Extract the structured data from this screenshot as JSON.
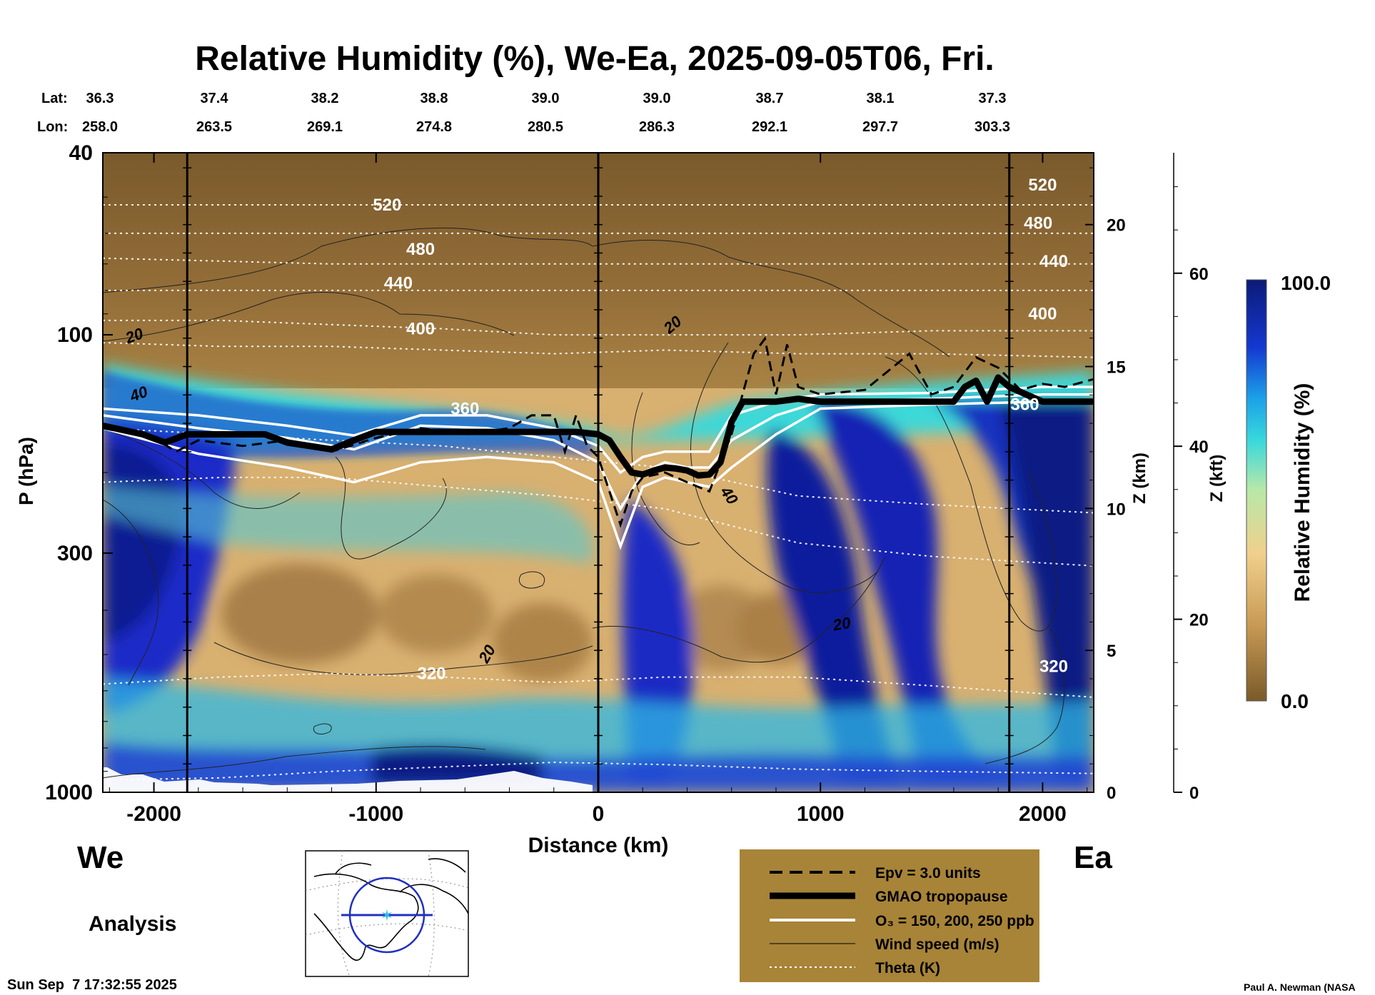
{
  "chart_data": {
    "type": "heatmap",
    "title": "Relative Humidity (%), We-Ea, 2025-09-05T06, Fri.",
    "xlabel": "Distance (km)",
    "ylabel": "P (hPa)",
    "z_km_label": "Z (km)",
    "z_kft_label": "Z (kft)",
    "colorbar_label": "Relative Humidity (%)",
    "colorbar_range": [
      "0.0",
      "100.0"
    ],
    "xlim": [
      -2230,
      2230
    ],
    "ylim_hpa": [
      1000,
      40
    ],
    "x_ticks": [
      -2000,
      -1000,
      0,
      1000,
      2000
    ],
    "x_tick_labels": [
      "-2000",
      "-1000",
      "0",
      "1000",
      "2000"
    ],
    "p_ticks": [
      40,
      100,
      300,
      1000
    ],
    "p_tick_labels": [
      "40",
      "100",
      "300",
      "1000"
    ],
    "z_km_ticks": [
      0,
      5,
      10,
      15,
      20
    ],
    "z_km_tick_labels": [
      "0",
      "5",
      "10",
      "15",
      "20"
    ],
    "z_kft_ticks": [
      0,
      20,
      40,
      60
    ],
    "z_kft_tick_labels": [
      "0",
      "20",
      "40",
      "60"
    ],
    "lat_label": "Lat:",
    "lon_label": "Lon:",
    "lats": [
      "36.3",
      "37.4",
      "38.2",
      "38.8",
      "39.0",
      "39.0",
      "38.7",
      "38.1",
      "37.3"
    ],
    "lons": [
      "258.0",
      "263.5",
      "269.1",
      "274.8",
      "280.5",
      "286.3",
      "292.1",
      "297.7",
      "303.3"
    ],
    "vertical_lines_km": [
      -1850,
      0,
      1850
    ],
    "colors": {
      "rh_dry": "#8a6a34",
      "rh_mid": "#e8c078",
      "rh_moist": "#4ad8d8",
      "rh_wet": "#1428c0",
      "rh_saturated": "#0c1470",
      "legend_bg": "#a88438"
    },
    "theta_contours": {
      "unit": "K",
      "labels": [
        "520",
        "480",
        "440",
        "400",
        "360",
        "320"
      ],
      "lines": [
        {
          "p": [
            52,
            52,
            52,
            52,
            52,
            52,
            52,
            52,
            52
          ]
        },
        {
          "p": [
            60,
            60,
            60,
            60,
            60,
            60,
            60,
            60,
            60
          ]
        },
        {
          "p": [
            68,
            69,
            70,
            70,
            70,
            70,
            70,
            70,
            70
          ]
        },
        {
          "p": [
            80,
            80,
            80,
            80,
            80,
            80,
            80,
            80,
            80
          ]
        },
        {
          "p": [
            93,
            93,
            95,
            97,
            100,
            100,
            100,
            98,
            98
          ]
        },
        {
          "p": [
            104,
            106,
            106,
            108,
            110,
            108,
            110,
            110,
            112
          ]
        },
        {
          "p": [
            160,
            165,
            170,
            175,
            185,
            195,
            225,
            235,
            245
          ]
        },
        {
          "p": [
            210,
            205,
            205,
            215,
            225,
            240,
            285,
            305,
            320
          ]
        },
        {
          "p": [
            580,
            560,
            550,
            560,
            575,
            560,
            560,
            585,
            620
          ]
        },
        {
          "p": [
            940,
            930,
            900,
            880,
            860,
            870,
            890,
            900,
            910
          ]
        }
      ]
    },
    "tropopause_gmao": {
      "x_km": [
        -2230,
        -2050,
        -1950,
        -1850,
        -1700,
        -1500,
        -1400,
        -1200,
        -1100,
        -1000,
        -900,
        -700,
        -500,
        -300,
        -100,
        0,
        50,
        100,
        150,
        200,
        250,
        300,
        350,
        400,
        450,
        500,
        550,
        600,
        650,
        700,
        800,
        900,
        1000,
        1200,
        1400,
        1600,
        1650,
        1700,
        1750,
        1800,
        1850,
        2000,
        2230
      ],
      "p_hpa": [
        158,
        165,
        172,
        165,
        165,
        165,
        172,
        178,
        170,
        163,
        163,
        163,
        163,
        163,
        163,
        165,
        170,
        185,
        200,
        202,
        198,
        195,
        196,
        198,
        203,
        202,
        190,
        155,
        140,
        140,
        140,
        138,
        140,
        140,
        140,
        140,
        130,
        126,
        140,
        124,
        130,
        140,
        140
      ]
    },
    "epv_3_units": {
      "x_km": [
        -2230,
        -2000,
        -1900,
        -1800,
        -1600,
        -1400,
        -1200,
        -1000,
        -800,
        -600,
        -400,
        -300,
        -200,
        -150,
        -100,
        -50,
        0,
        50,
        100,
        150,
        200,
        300,
        400,
        500,
        600,
        700,
        750,
        800,
        850,
        900,
        1000,
        1200,
        1400,
        1500,
        1600,
        1700,
        1800,
        1900,
        2000,
        2100,
        2230
      ],
      "p_hpa": [
        160,
        168,
        180,
        170,
        175,
        170,
        180,
        168,
        160,
        165,
        160,
        150,
        150,
        180,
        150,
        175,
        185,
        220,
        260,
        220,
        205,
        200,
        210,
        220,
        165,
        110,
        102,
        135,
        105,
        130,
        135,
        132,
        110,
        135,
        130,
        112,
        118,
        132,
        128,
        130,
        125
      ]
    },
    "ozone_ppb": {
      "levels": [
        150,
        200,
        250
      ],
      "lines": [
        {
          "x_km": [
            -2230,
            -1800,
            -1400,
            -1100,
            -800,
            -500,
            -200,
            0,
            100,
            200,
            300,
            400,
            500,
            600,
            800,
            1000,
            1500,
            2000,
            2230
          ],
          "p_hpa": [
            145,
            150,
            158,
            166,
            150,
            150,
            160,
            175,
            200,
            185,
            180,
            180,
            180,
            150,
            140,
            135,
            134,
            130,
            130
          ]
        },
        {
          "x_km": [
            -2230,
            -1800,
            -1400,
            -1100,
            -800,
            -500,
            -200,
            0,
            100,
            200,
            300,
            400,
            500,
            600,
            800,
            1000,
            1500,
            2000,
            2230
          ],
          "p_hpa": [
            150,
            160,
            168,
            178,
            158,
            160,
            170,
            190,
            240,
            200,
            190,
            195,
            195,
            170,
            150,
            140,
            138,
            135,
            135
          ]
        },
        {
          "x_km": [
            -2230,
            -1800,
            -1400,
            -1100,
            -800,
            -500,
            -200,
            0,
            100,
            200,
            300,
            400,
            500,
            600,
            800,
            1000,
            1500,
            2000,
            2230
          ],
          "p_hpa": [
            160,
            182,
            195,
            210,
            190,
            185,
            190,
            210,
            290,
            215,
            205,
            210,
            215,
            195,
            165,
            145,
            142,
            140,
            140
          ]
        }
      ]
    },
    "wind_contours": {
      "unit": "m/s",
      "labels": [
        "20",
        "40",
        "20",
        "20",
        "40",
        "20"
      ]
    },
    "legend": {
      "items": [
        "Epv = 3.0 units",
        "GMAO tropopause",
        "O₃ = 150, 200, 250 ppb",
        "Wind speed (m/s)",
        "Theta (K)"
      ]
    },
    "left_label": "We",
    "right_label": "Ea",
    "analysis_label": "Analysis",
    "timestamp": "Sun Sep  7 17:32:55 2025",
    "credit": "Paul A. Newman (NASA"
  }
}
